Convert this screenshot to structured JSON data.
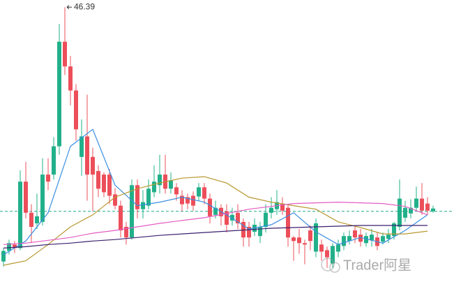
{
  "chart_data": {
    "type": "candlestick",
    "xlim": [
      -0.625,
      80.75
    ],
    "ylim": [
      7.5,
      47.4
    ],
    "up_color": "#22b08a",
    "down_color": "#ec4f5a",
    "open": [
      10.4,
      11.9,
      12.8,
      12.3,
      21.7,
      17.3,
      15.8,
      16.0,
      22.7,
      22.7,
      26.7,
      41.5,
      38.0,
      34.6,
      25.2,
      28.1,
      25.2,
      23.2,
      22.7,
      22.7,
      19.9,
      18.3,
      15.3,
      13.8,
      21.2,
      17.8,
      18.3,
      20.2,
      21.2,
      22.7,
      20.7,
      20.9,
      19.7,
      19.5,
      19.7,
      19.6,
      20.9,
      19.3,
      17.0,
      18.0,
      17.5,
      16.2,
      17.3,
      16.0,
      15.3,
      14.6,
      14.0,
      15.3,
      17.3,
      17.8,
      18.6,
      18.0,
      13.8,
      13.8,
      13.0,
      14.8,
      11.8,
      12.8,
      12.0,
      10.1,
      11.8,
      12.6,
      13.3,
      14.8,
      14.2,
      13.0,
      13.4,
      13.8,
      13.2,
      13.6,
      14.0,
      15.3,
      16.6,
      17.2,
      18.0,
      19.3,
      18.6,
      17.5
    ],
    "high": [
      12.3,
      13.5,
      13.3,
      23.3,
      24.5,
      18.5,
      20.0,
      25.0,
      25.0,
      28.0,
      44.0,
      46.39,
      39.5,
      35.5,
      30.5,
      34.0,
      26.5,
      24.0,
      23.0,
      23.5,
      20.8,
      19.0,
      16.0,
      22.0,
      22.0,
      20.5,
      22.0,
      24.0,
      25.5,
      25.5,
      23.0,
      21.5,
      20.5,
      20.0,
      20.3,
      21.5,
      21.5,
      20.0,
      19.0,
      18.5,
      18.5,
      18.0,
      18.5,
      16.5,
      16.0,
      16.5,
      16.0,
      18.5,
      19.5,
      20.5,
      19.5,
      18.5,
      14.0,
      15.0,
      13.5,
      15.5,
      16.5,
      13.5,
      12.5,
      13.0,
      13.5,
      14.5,
      14.8,
      15.5,
      15.0,
      14.5,
      15.0,
      14.5,
      14.5,
      15.0,
      16.0,
      22.0,
      19.0,
      19.2,
      21.0,
      21.5,
      19.5,
      18.3
    ],
    "low": [
      9.7,
      11.4,
      11.6,
      12.0,
      16.5,
      13.0,
      15.0,
      15.5,
      20.5,
      22.0,
      25.5,
      36.8,
      32.5,
      27.5,
      22.5,
      19.0,
      17.5,
      19.5,
      19.5,
      18.5,
      17.8,
      13.8,
      12.8,
      13.5,
      16.5,
      16.5,
      17.8,
      19.5,
      20.0,
      20.0,
      20.0,
      19.0,
      17.5,
      17.8,
      17.6,
      19.0,
      18.5,
      15.8,
      16.5,
      15.5,
      14.5,
      15.5,
      15.0,
      12.5,
      12.5,
      14.0,
      13.0,
      14.5,
      16.5,
      17.0,
      17.0,
      12.5,
      10.5,
      11.5,
      10.0,
      12.0,
      11.0,
      10.5,
      9.5,
      9.5,
      11.0,
      12.0,
      12.8,
      13.0,
      12.5,
      12.5,
      12.5,
      12.0,
      12.8,
      13.0,
      13.5,
      14.8,
      16.0,
      16.5,
      17.5,
      17.0,
      17.0,
      17.3
    ],
    "close": [
      11.9,
      13.0,
      12.3,
      21.7,
      17.3,
      15.3,
      16.8,
      22.7,
      21.7,
      26.7,
      41.5,
      38.0,
      34.6,
      29.1,
      28.1,
      22.7,
      22.7,
      20.7,
      20.2,
      19.7,
      18.3,
      14.8,
      13.8,
      21.2,
      17.8,
      18.8,
      20.7,
      21.7,
      22.7,
      20.7,
      21.9,
      19.9,
      18.5,
      18.6,
      18.3,
      20.9,
      19.3,
      16.8,
      18.0,
      16.8,
      15.6,
      17.0,
      15.8,
      13.8,
      13.8,
      15.6,
      15.3,
      17.3,
      18.0,
      18.8,
      17.6,
      13.8,
      13.3,
      13.0,
      12.8,
      13.3,
      15.8,
      11.8,
      11.0,
      12.6,
      12.8,
      14.0,
      14.0,
      13.8,
      13.2,
      14.0,
      14.2,
      12.6,
      14.0,
      14.2,
      15.8,
      19.3,
      18.0,
      18.0,
      19.3,
      17.6,
      17.6,
      17.9
    ],
    "lines": [
      {
        "color": "#3a8ee0",
        "x": [
          0,
          4,
          8,
          12,
          16,
          20,
          24,
          28,
          32,
          36,
          40,
          44,
          48,
          52,
          56,
          60,
          64,
          68,
          72,
          76
        ],
        "values": [
          11.35,
          13.3,
          17.3,
          26.7,
          29.1,
          21.2,
          18.3,
          18.8,
          19.5,
          18.8,
          17.0,
          15.0,
          15.6,
          17.3,
          14.6,
          12.8,
          13.8,
          13.0,
          14.8,
          17.0
        ]
      },
      {
        "color": "#b8982e",
        "x": [
          0,
          4,
          8,
          12,
          16,
          20,
          24,
          28,
          32,
          36,
          40,
          44,
          48,
          52,
          56,
          60,
          64,
          68,
          72,
          76
        ],
        "values": [
          9.87,
          10.5,
          12.8,
          15.3,
          17.0,
          19.5,
          20.7,
          21.5,
          22.2,
          22.4,
          21.5,
          19.5,
          18.8,
          18.3,
          17.8,
          16.0,
          15.2,
          14.3,
          14.3,
          14.7
        ]
      },
      {
        "color": "#e45cc4",
        "x": [
          0,
          4,
          8,
          12,
          16,
          20,
          24,
          28,
          32,
          36,
          40,
          44,
          48,
          52,
          56,
          60,
          64,
          68,
          72,
          76
        ],
        "values": [
          12.8,
          13.0,
          13.4,
          13.8,
          14.4,
          14.8,
          15.3,
          15.8,
          16.2,
          16.6,
          17.2,
          17.8,
          18.2,
          18.6,
          18.7,
          18.8,
          18.7,
          18.6,
          18.2,
          17.0
        ]
      },
      {
        "color": "#3b1f6e",
        "x": [
          0,
          4,
          8,
          12,
          16,
          20,
          24,
          28,
          32,
          36,
          40,
          44,
          48,
          52,
          56,
          60,
          64,
          68,
          72,
          76
        ],
        "values": [
          12.3,
          12.5,
          12.8,
          13.0,
          13.3,
          13.5,
          13.8,
          14.1,
          14.3,
          14.5,
          14.7,
          14.9,
          15.1,
          15.2,
          15.3,
          15.4,
          15.5,
          15.5,
          15.5,
          15.5
        ]
      }
    ],
    "price_line": 17.5,
    "price_line_color": "#22a88a",
    "max_label": "46.39",
    "max_index": 11,
    "watermark": "Trader阿星"
  }
}
